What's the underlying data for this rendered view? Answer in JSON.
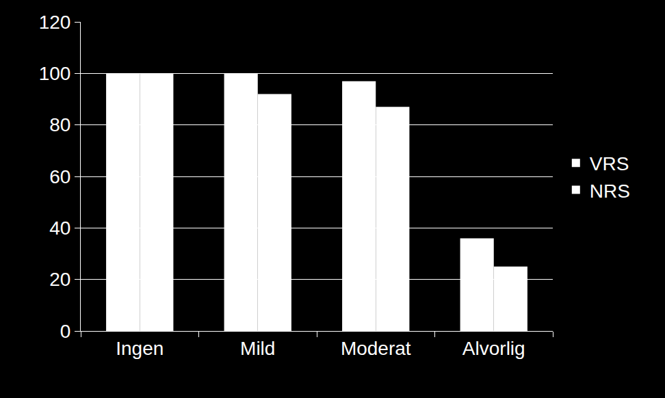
{
  "chart_data": {
    "type": "bar",
    "categories": [
      "Ingen",
      "Mild",
      "Moderat",
      "Alvorlig"
    ],
    "series": [
      {
        "name": "VRS",
        "color": "#ffffff",
        "values": [
          100,
          100,
          97,
          36
        ]
      },
      {
        "name": "NRS",
        "color": "#ffffff",
        "values": [
          100,
          92,
          87,
          25
        ]
      }
    ],
    "ylim": [
      0,
      120
    ],
    "yticks": [
      0,
      20,
      40,
      60,
      80,
      100,
      120
    ],
    "grid": true,
    "legend": "right"
  }
}
